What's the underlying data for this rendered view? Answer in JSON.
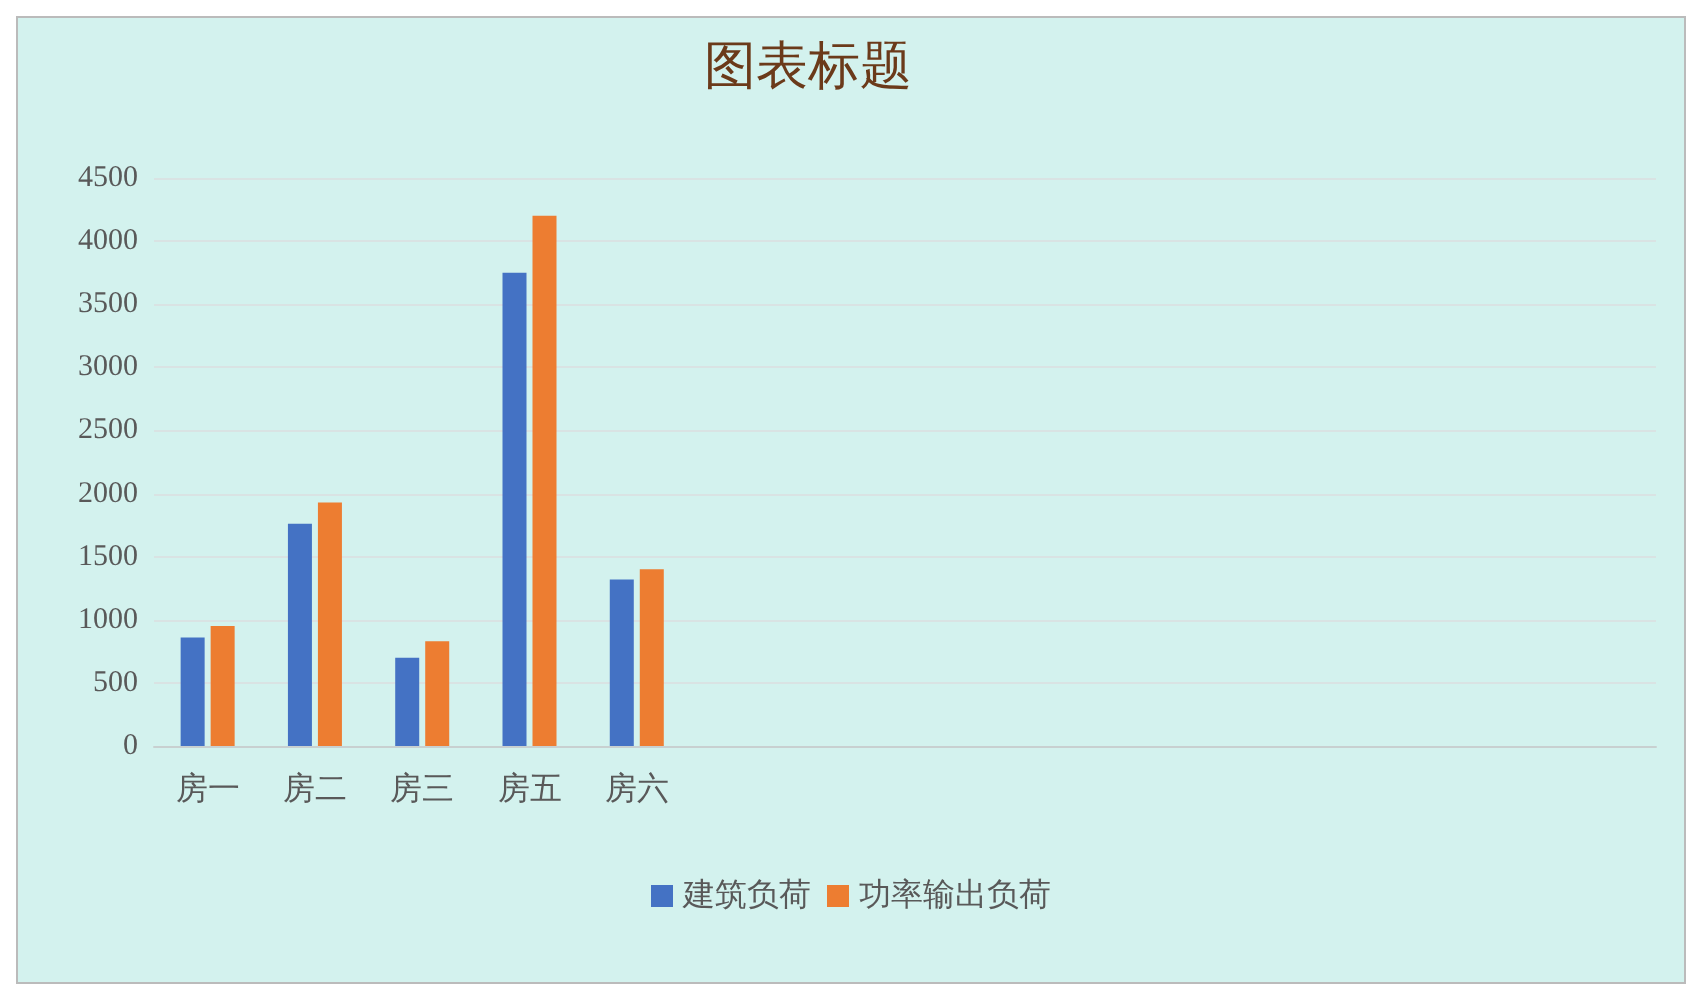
{
  "chart_data": {
    "type": "bar",
    "title": "图表标题",
    "categories": [
      "房一",
      "房二",
      "房三",
      "房五",
      "房六",
      null,
      null,
      null,
      null,
      null,
      null,
      null,
      null,
      null
    ],
    "series": [
      {
        "name": "建筑负荷",
        "color": "#4472c4",
        "values": [
          860,
          1760,
          700,
          3750,
          1320,
          null,
          null,
          null,
          null,
          null,
          null,
          null,
          null,
          null
        ]
      },
      {
        "name": "功率输出负荷",
        "color": "#ed7d31",
        "values": [
          950,
          1930,
          830,
          4200,
          1400,
          null,
          null,
          null,
          null,
          null,
          null,
          null,
          null,
          null
        ]
      }
    ],
    "ylim": [
      0,
      4500
    ],
    "yticks": [
      0,
      500,
      1000,
      1500,
      2000,
      2500,
      3000,
      3500,
      4000,
      4500
    ],
    "grid": "y",
    "legend": "bottom"
  }
}
